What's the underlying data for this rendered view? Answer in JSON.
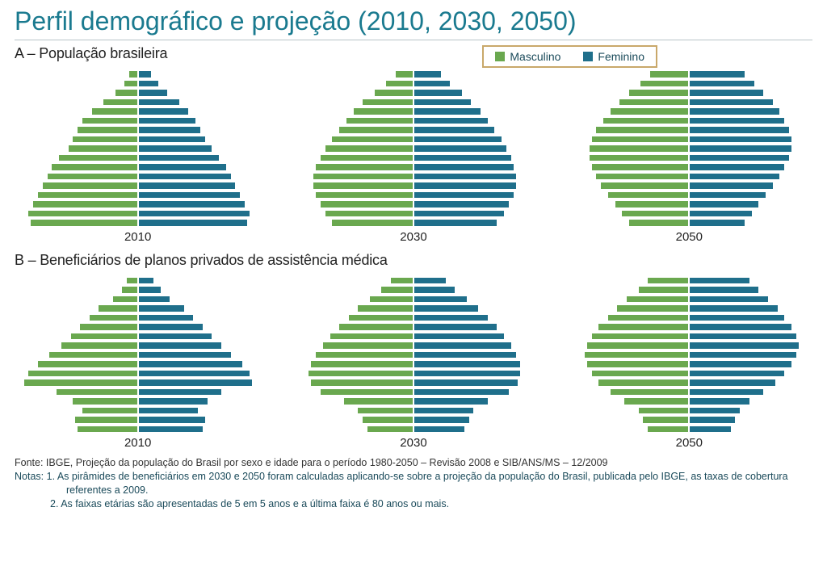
{
  "title": "Perfil demográfico e projeção (2010, 2030, 2050)",
  "colors": {
    "title": "#1a7a8f",
    "male": "#6aa84f",
    "female": "#1f6f8b",
    "legend_border": "#c9a86a",
    "text": "#222222",
    "footnote": "#1a4a5a"
  },
  "legend": {
    "male": "Masculino",
    "female": "Feminino"
  },
  "section_a": {
    "label": "A – População brasileira",
    "pyramids": [
      {
        "year": "2010",
        "max": 100,
        "male": [
          8,
          12,
          20,
          30,
          40,
          48,
          52,
          56,
          60,
          68,
          74,
          78,
          82,
          86,
          90,
          94,
          92
        ],
        "female": [
          12,
          18,
          26,
          36,
          44,
          50,
          54,
          58,
          64,
          70,
          76,
          80,
          84,
          88,
          92,
          96,
          94
        ]
      },
      {
        "year": "2030",
        "max": 100,
        "male": [
          16,
          24,
          34,
          44,
          52,
          58,
          64,
          70,
          76,
          80,
          84,
          86,
          86,
          84,
          80,
          76,
          70
        ],
        "female": [
          24,
          32,
          42,
          50,
          58,
          64,
          70,
          76,
          80,
          84,
          86,
          88,
          88,
          86,
          82,
          78,
          72
        ]
      },
      {
        "year": "2050",
        "max": 100,
        "male": [
          34,
          42,
          52,
          60,
          68,
          74,
          80,
          84,
          86,
          86,
          84,
          80,
          76,
          70,
          64,
          58,
          52
        ],
        "female": [
          48,
          56,
          64,
          72,
          78,
          82,
          86,
          88,
          88,
          86,
          82,
          78,
          72,
          66,
          60,
          54,
          48
        ]
      }
    ]
  },
  "section_b": {
    "label": "B – Beneficiários de planos privados de assistência médica",
    "pyramids": [
      {
        "year": "2010",
        "max": 100,
        "male": [
          10,
          14,
          22,
          34,
          42,
          50,
          58,
          66,
          76,
          86,
          94,
          98,
          70,
          56,
          48,
          54,
          52
        ],
        "female": [
          14,
          20,
          28,
          40,
          48,
          56,
          64,
          72,
          80,
          90,
          96,
          98,
          72,
          60,
          52,
          58,
          56
        ]
      },
      {
        "year": "2030",
        "max": 100,
        "male": [
          20,
          28,
          38,
          48,
          56,
          64,
          72,
          78,
          84,
          88,
          90,
          88,
          80,
          60,
          48,
          44,
          40
        ],
        "female": [
          28,
          36,
          46,
          56,
          64,
          72,
          78,
          84,
          88,
          92,
          92,
          90,
          82,
          64,
          52,
          48,
          44
        ]
      },
      {
        "year": "2050",
        "max": 100,
        "male": [
          36,
          44,
          54,
          62,
          70,
          78,
          84,
          88,
          90,
          88,
          84,
          78,
          68,
          56,
          44,
          40,
          36
        ],
        "female": [
          52,
          60,
          68,
          76,
          82,
          88,
          92,
          94,
          92,
          88,
          82,
          74,
          64,
          52,
          44,
          40,
          36
        ]
      }
    ]
  },
  "footnotes": {
    "fonte": "Fonte: IBGE, Projeção da população do Brasil por sexo e idade para o período 1980-2050 – Revisão 2008 e SIB/ANS/MS – 12/2009",
    "notas_label": "Notas:",
    "nota1_a": "1. As pirâmides de beneficiários em 2030 e 2050 foram calculadas aplicando-se sobre a projeção da população do Brasil, publicada pelo IBGE, as taxas de cobertura",
    "nota1_b": "referentes a 2009.",
    "nota2": "2. As faixas etárias são apresentadas de 5 em 5 anos e a última faixa é 80 anos ou mais."
  }
}
